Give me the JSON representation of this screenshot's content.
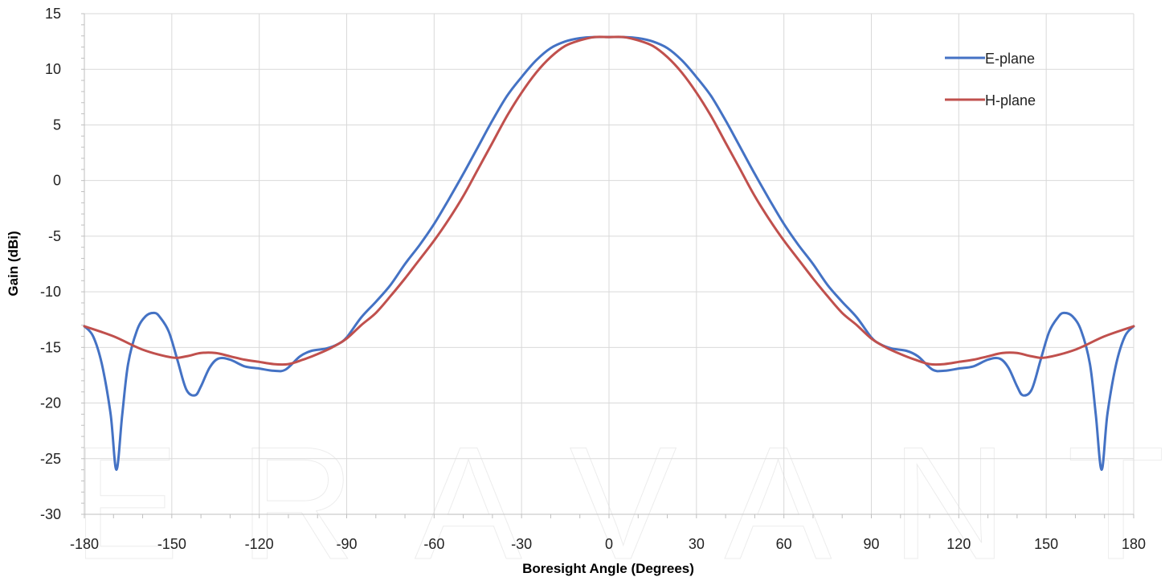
{
  "watermark": "ERAVANT",
  "chart_data": {
    "type": "line",
    "title": "",
    "xlabel": "Boresight Angle (Degrees)",
    "ylabel": "Gain (dBi)",
    "xlim": [
      -180,
      180
    ],
    "ylim": [
      -30,
      15
    ],
    "xticks": [
      -180,
      -150,
      -120,
      -90,
      -60,
      -30,
      0,
      30,
      60,
      90,
      120,
      150,
      180
    ],
    "yticks": [
      15,
      10,
      5,
      0,
      -5,
      -10,
      -15,
      -20,
      -25,
      -30
    ],
    "grid": true,
    "legend_position": "top-right",
    "series": [
      {
        "name": "E-plane",
        "color": "#4472C4",
        "x": [
          -180,
          -177,
          -174,
          -171,
          -169,
          -167,
          -165,
          -162,
          -159,
          -156,
          -154,
          -151,
          -148,
          -145,
          -142,
          -140,
          -137,
          -134,
          -130,
          -125,
          -120,
          -115,
          -111,
          -106,
          -102,
          -97,
          -93,
          -90,
          -85,
          -80,
          -75,
          -70,
          -65,
          -60,
          -55,
          -50,
          -45,
          -40,
          -35,
          -30,
          -25,
          -20,
          -15,
          -10,
          -5,
          0,
          5,
          10,
          15,
          20,
          25,
          30,
          35,
          40,
          45,
          50,
          55,
          60,
          65,
          70,
          75,
          80,
          85,
          90,
          93,
          97,
          102,
          106,
          111,
          115,
          120,
          125,
          130,
          134,
          137,
          140,
          142,
          145,
          148,
          151,
          154,
          156,
          159,
          162,
          165,
          167,
          169,
          171,
          174,
          177,
          180
        ],
        "y": [
          -13.1,
          -14.0,
          -16.5,
          -21.0,
          -26.0,
          -21.0,
          -16.5,
          -13.5,
          -12.2,
          -11.9,
          -12.3,
          -13.6,
          -16.2,
          -18.8,
          -19.3,
          -18.5,
          -16.8,
          -16.0,
          -16.1,
          -16.7,
          -16.9,
          -17.1,
          -17.0,
          -15.8,
          -15.3,
          -15.1,
          -14.7,
          -14.1,
          -12.3,
          -10.9,
          -9.4,
          -7.5,
          -5.8,
          -3.9,
          -1.7,
          0.6,
          3.0,
          5.4,
          7.6,
          9.3,
          10.8,
          11.9,
          12.5,
          12.8,
          12.9,
          12.9,
          12.9,
          12.8,
          12.5,
          11.9,
          10.8,
          9.3,
          7.6,
          5.4,
          3.0,
          0.6,
          -1.7,
          -3.9,
          -5.8,
          -7.5,
          -9.4,
          -10.9,
          -12.3,
          -14.1,
          -14.7,
          -15.1,
          -15.3,
          -15.8,
          -17.0,
          -17.1,
          -16.9,
          -16.7,
          -16.1,
          -16.0,
          -16.8,
          -18.5,
          -19.3,
          -18.8,
          -16.2,
          -13.6,
          -12.3,
          -11.9,
          -12.2,
          -13.5,
          -16.5,
          -21.0,
          -26.0,
          -21.0,
          -16.5,
          -14.0,
          -13.1
        ]
      },
      {
        "name": "H-plane",
        "color": "#C0504D",
        "x": [
          -180,
          -170,
          -160,
          -150,
          -145,
          -140,
          -135,
          -130,
          -125,
          -120,
          -115,
          -110,
          -105,
          -100,
          -95,
          -90,
          -85,
          -80,
          -75,
          -70,
          -65,
          -60,
          -55,
          -50,
          -45,
          -40,
          -35,
          -30,
          -25,
          -20,
          -15,
          -10,
          -5,
          0,
          5,
          10,
          15,
          20,
          25,
          30,
          35,
          40,
          45,
          50,
          55,
          60,
          65,
          70,
          75,
          80,
          85,
          90,
          95,
          100,
          105,
          110,
          115,
          120,
          125,
          130,
          135,
          140,
          145,
          150,
          160,
          170,
          180
        ],
        "y": [
          -13.1,
          -14.0,
          -15.2,
          -15.9,
          -15.8,
          -15.5,
          -15.5,
          -15.8,
          -16.1,
          -16.3,
          -16.5,
          -16.5,
          -16.1,
          -15.6,
          -15.0,
          -14.2,
          -13.0,
          -11.9,
          -10.4,
          -8.8,
          -7.1,
          -5.4,
          -3.5,
          -1.4,
          1.0,
          3.4,
          5.8,
          7.9,
          9.7,
          11.1,
          12.1,
          12.6,
          12.9,
          12.9,
          12.9,
          12.6,
          12.1,
          11.1,
          9.7,
          7.9,
          5.8,
          3.4,
          1.0,
          -1.4,
          -3.5,
          -5.4,
          -7.1,
          -8.8,
          -10.4,
          -11.9,
          -13.0,
          -14.2,
          -15.0,
          -15.6,
          -16.1,
          -16.5,
          -16.5,
          -16.3,
          -16.1,
          -15.8,
          -15.5,
          -15.5,
          -15.8,
          -15.9,
          -15.2,
          -14.0,
          -13.1
        ]
      }
    ]
  }
}
